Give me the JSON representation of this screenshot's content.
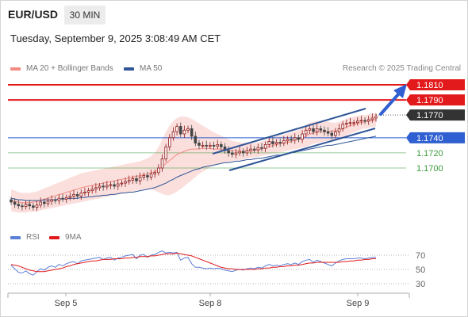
{
  "header": {
    "symbol": "EUR/USD",
    "timeframe": "30 MIN",
    "datetime": "Tuesday, September 9, 2025 3:08:49 AM CET"
  },
  "legend": {
    "items": [
      {
        "label": "MA 20 + Bollinger Bands",
        "color": "#f28b82"
      },
      {
        "label": "MA 50",
        "color": "#2f5597"
      }
    ],
    "credit": "Research © 2025 Trading Central"
  },
  "rsi_legend": {
    "items": [
      {
        "label": "RSI",
        "color": "#5b7fd6"
      },
      {
        "label": "9MA",
        "color": "#e31a1c"
      }
    ]
  },
  "colors": {
    "resistance": "#e31a1c",
    "pivot": "#2f5fd0",
    "support": "#3a9a3a",
    "candle_up": "#8b1a1a",
    "candle_down": "#444444",
    "band_fill": "#f9c9c6",
    "ma20": "#f28b82",
    "ma50": "#2f5597",
    "rsi": "#5b7fd6",
    "rsi_ma": "#e31a1c",
    "channel": "#2f5597",
    "arrow": "#2f5fd0",
    "last_price_tag": "#333333"
  },
  "chart_data": [
    {
      "type": "candlestick",
      "title": "",
      "x_ticks": [
        "Sep 5",
        "Sep 8",
        "Sep 9"
      ],
      "ylim": [
        1.1645,
        1.182
      ],
      "levels": [
        {
          "value": 1.181,
          "label": "1.1810",
          "kind": "resistance"
        },
        {
          "value": 1.179,
          "label": "1.1790",
          "kind": "resistance"
        },
        {
          "value": 1.177,
          "label": "1.1770",
          "kind": "last"
        },
        {
          "value": 1.174,
          "label": "1.1740",
          "kind": "pivot"
        },
        {
          "value": 1.172,
          "label": "1.1720",
          "kind": "support"
        },
        {
          "value": 1.17,
          "label": "1.1700",
          "kind": "support"
        }
      ],
      "close": [
        1.1655,
        1.1652,
        1.165,
        1.1649,
        1.1652,
        1.165,
        1.1648,
        1.1651,
        1.1655,
        1.1653,
        1.1656,
        1.1658,
        1.1657,
        1.166,
        1.1659,
        1.1661,
        1.1663,
        1.1665,
        1.1663,
        1.1667,
        1.1668,
        1.167,
        1.1672,
        1.1674,
        1.1676,
        1.1675,
        1.1677,
        1.1678,
        1.1676,
        1.1679,
        1.168,
        1.1682,
        1.1684,
        1.1686,
        1.1683,
        1.1688,
        1.169,
        1.1688,
        1.1692,
        1.1694,
        1.17,
        1.1712,
        1.1728,
        1.174,
        1.1748,
        1.1755,
        1.1745,
        1.175,
        1.1752,
        1.1742,
        1.1733,
        1.173,
        1.173,
        1.1729,
        1.173,
        1.1729,
        1.1731,
        1.1728,
        1.1723,
        1.172,
        1.1718,
        1.172,
        1.1722,
        1.172,
        1.1723,
        1.1725,
        1.1724,
        1.1727,
        1.1726,
        1.1731,
        1.1735,
        1.1732,
        1.1734,
        1.1733,
        1.1736,
        1.1738,
        1.1737,
        1.174,
        1.1738,
        1.1745,
        1.175,
        1.1752,
        1.1748,
        1.1752,
        1.175,
        1.1748,
        1.1746,
        1.1743,
        1.1748,
        1.1752,
        1.1758,
        1.1759,
        1.176,
        1.176,
        1.1762,
        1.1763,
        1.1762,
        1.1764,
        1.1766,
        1.1768
      ],
      "upper_band": [
        1.1672,
        1.167,
        1.1668,
        1.1667,
        1.1667,
        1.1667,
        1.1668,
        1.1669,
        1.1671,
        1.1673,
        1.1675,
        1.1677,
        1.1679,
        1.1681,
        1.1683,
        1.1685,
        1.1687,
        1.1689,
        1.1691,
        1.1693,
        1.1694,
        1.1695,
        1.1696,
        1.1697,
        1.1698,
        1.1699,
        1.17,
        1.1701,
        1.1702,
        1.1703,
        1.1704,
        1.1705,
        1.1706,
        1.1707,
        1.1708,
        1.1709,
        1.1711,
        1.1713,
        1.1716,
        1.172,
        1.1728,
        1.1738,
        1.1748,
        1.1756,
        1.1762,
        1.1766,
        1.1768,
        1.1768,
        1.1767,
        1.1765,
        1.1762,
        1.1759,
        1.1756,
        1.1753,
        1.175,
        1.1747,
        1.1745,
        1.1743,
        1.174,
        1.1738,
        1.1736,
        1.1735,
        1.1734,
        1.1733,
        1.1733,
        1.1733,
        1.1733,
        1.1734,
        1.1735,
        1.1737,
        1.1739,
        1.1741,
        1.1742,
        1.1743,
        1.1744,
        1.1746,
        1.1747,
        1.1749,
        1.175,
        1.1753,
        1.1757,
        1.176,
        1.1761,
        1.1762,
        1.1762,
        1.1762,
        1.1761,
        1.176,
        1.176,
        1.1761,
        1.1763,
        1.1765,
        1.1767,
        1.1768,
        1.1769,
        1.177,
        1.177,
        1.1771,
        1.1772,
        1.1773
      ],
      "lower_band": [
        1.1643,
        1.1642,
        1.1641,
        1.1641,
        1.1641,
        1.1642,
        1.1642,
        1.1643,
        1.1644,
        1.1645,
        1.1646,
        1.1647,
        1.1648,
        1.1649,
        1.165,
        1.1651,
        1.1652,
        1.1653,
        1.1654,
        1.1655,
        1.1656,
        1.1657,
        1.1658,
        1.1659,
        1.166,
        1.1661,
        1.1662,
        1.1663,
        1.1664,
        1.1665,
        1.1666,
        1.1667,
        1.1668,
        1.1669,
        1.167,
        1.1671,
        1.1672,
        1.1672,
        1.1672,
        1.167,
        1.1668,
        1.1666,
        1.1664,
        1.1664,
        1.1666,
        1.1669,
        1.1672,
        1.1676,
        1.168,
        1.1684,
        1.1688,
        1.1692,
        1.1695,
        1.1698,
        1.1701,
        1.1703,
        1.1705,
        1.1706,
        1.1707,
        1.1708,
        1.1709,
        1.171,
        1.171,
        1.1711,
        1.1712,
        1.1713,
        1.1714,
        1.1715,
        1.1716,
        1.1717,
        1.1718,
        1.1719,
        1.172,
        1.1721,
        1.1722,
        1.1723,
        1.1724,
        1.1725,
        1.1726,
        1.1727,
        1.1728,
        1.173,
        1.1732,
        1.1733,
        1.1734,
        1.1735,
        1.1736,
        1.1737,
        1.1738,
        1.1739,
        1.1741,
        1.1743,
        1.1745,
        1.1747,
        1.1749,
        1.1751,
        1.1752,
        1.1753,
        1.1754,
        1.1755
      ],
      "ma20": [
        1.1657,
        1.1656,
        1.1655,
        1.1654,
        1.1654,
        1.1654,
        1.1655,
        1.1656,
        1.1657,
        1.1659,
        1.166,
        1.1662,
        1.1663,
        1.1665,
        1.1666,
        1.1668,
        1.1669,
        1.1671,
        1.1672,
        1.1674,
        1.1675,
        1.1676,
        1.1677,
        1.1678,
        1.1679,
        1.168,
        1.1681,
        1.1682,
        1.1683,
        1.1684,
        1.1685,
        1.1686,
        1.1687,
        1.1688,
        1.1689,
        1.169,
        1.1691,
        1.1692,
        1.1694,
        1.1695,
        1.1698,
        1.1702,
        1.1706,
        1.171,
        1.1714,
        1.1718,
        1.172,
        1.1722,
        1.1724,
        1.1725,
        1.1725,
        1.1725,
        1.1726,
        1.1726,
        1.1726,
        1.1725,
        1.1725,
        1.1725,
        1.1724,
        1.1723,
        1.1723,
        1.1723,
        1.1722,
        1.1722,
        1.1722,
        1.1723,
        1.1723,
        1.1724,
        1.1725,
        1.1727,
        1.1728,
        1.173,
        1.1731,
        1.1732,
        1.1733,
        1.1734,
        1.1735,
        1.1737,
        1.1738,
        1.174,
        1.1742,
        1.1745,
        1.1746,
        1.1747,
        1.1748,
        1.1748,
        1.1748,
        1.1749,
        1.1749,
        1.175,
        1.1752,
        1.1754,
        1.1756,
        1.1757,
        1.1759,
        1.176,
        1.1761,
        1.1762,
        1.1763,
        1.1764
      ],
      "ma50": [
        1.166,
        1.1659,
        1.1658,
        1.1658,
        1.1657,
        1.1657,
        1.1657,
        1.1657,
        1.1657,
        1.1658,
        1.1658,
        1.1658,
        1.1658,
        1.1659,
        1.1659,
        1.1659,
        1.166,
        1.166,
        1.166,
        1.1661,
        1.1661,
        1.1662,
        1.1662,
        1.1663,
        1.1663,
        1.1664,
        1.1664,
        1.1665,
        1.1665,
        1.1666,
        1.1667,
        1.1667,
        1.1668,
        1.1668,
        1.1669,
        1.167,
        1.1671,
        1.1672,
        1.1673,
        1.1674,
        1.1676,
        1.1678,
        1.168,
        1.1683,
        1.1685,
        1.1688,
        1.169,
        1.1692,
        1.1694,
        1.1696,
        1.1698,
        1.1699,
        1.1701,
        1.1702,
        1.1703,
        1.1704,
        1.1705,
        1.1706,
        1.1707,
        1.1707,
        1.1708,
        1.1709,
        1.1709,
        1.171,
        1.1711,
        1.1711,
        1.1712,
        1.1713,
        1.1713,
        1.1714,
        1.1715,
        1.1716,
        1.1717,
        1.1717,
        1.1718,
        1.1719,
        1.172,
        1.1721,
        1.1722,
        1.1723,
        1.1724,
        1.1725,
        1.1726,
        1.1727,
        1.1728,
        1.1729,
        1.173,
        1.173,
        1.1731,
        1.1732,
        1.1733,
        1.1734,
        1.1735,
        1.1736,
        1.1737,
        1.1738,
        1.1739,
        1.174,
        1.1741,
        1.1742
      ]
    },
    {
      "type": "line",
      "title": "",
      "ylim": [
        20,
        80
      ],
      "y_ticks": [
        70,
        50,
        30
      ],
      "ref_lines": [
        70,
        50,
        30
      ],
      "series": [
        {
          "name": "RSI",
          "values": [
            56,
            51,
            46,
            45,
            48,
            44,
            42,
            47,
            51,
            49,
            53,
            55,
            53,
            57,
            55,
            58,
            60,
            61,
            58,
            62,
            63,
            64,
            65,
            66,
            67,
            64,
            66,
            67,
            63,
            66,
            67,
            69,
            70,
            71,
            65,
            70,
            71,
            67,
            70,
            71,
            74,
            76,
            73,
            74,
            73,
            74,
            63,
            66,
            67,
            58,
            53,
            53,
            52,
            51,
            52,
            51,
            52,
            51,
            49,
            48,
            47,
            49,
            50,
            49,
            51,
            52,
            51,
            53,
            52,
            55,
            57,
            55,
            56,
            55,
            57,
            58,
            57,
            59,
            57,
            61,
            63,
            64,
            60,
            63,
            61,
            59,
            57,
            55,
            59,
            62,
            64,
            65,
            65,
            65,
            66,
            66,
            65,
            66,
            67,
            67
          ]
        },
        {
          "name": "9MA",
          "values": [
            57,
            56,
            55,
            53,
            51,
            49,
            48,
            47,
            47,
            47,
            48,
            49,
            50,
            51,
            52,
            54,
            55,
            57,
            58,
            59,
            60,
            61,
            62,
            62,
            63,
            64,
            64,
            64,
            65,
            65,
            65,
            66,
            66,
            67,
            67,
            68,
            68,
            68,
            69,
            69,
            70,
            71,
            72,
            72,
            72,
            73,
            72,
            71,
            70,
            69,
            67,
            65,
            63,
            61,
            59,
            57,
            55,
            53,
            52,
            51,
            51,
            50,
            50,
            50,
            50,
            50,
            50,
            51,
            51,
            52,
            52,
            53,
            53,
            54,
            54,
            55,
            55,
            56,
            56,
            57,
            58,
            59,
            59,
            60,
            60,
            60,
            60,
            60,
            60,
            60,
            61,
            61,
            62,
            62,
            63,
            63,
            64,
            64,
            65,
            65
          ]
        }
      ]
    }
  ]
}
